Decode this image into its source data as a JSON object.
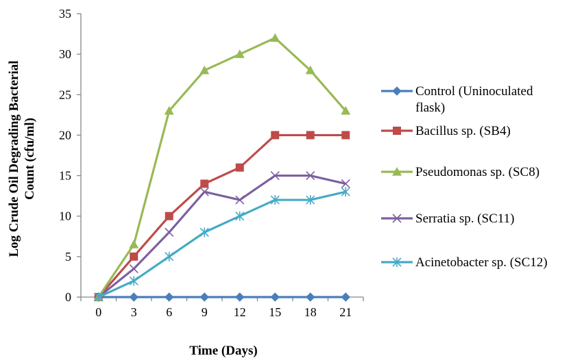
{
  "chart_data": {
    "type": "line",
    "title": "",
    "xlabel": "Time (Days)",
    "ylabel_lines": [
      "Log Crude Oil Degrading Bacterial",
      "Count (cfu/ml)"
    ],
    "x": [
      0,
      3,
      6,
      9,
      12,
      15,
      18,
      21
    ],
    "ylim": [
      0,
      35
    ],
    "yticks": [
      0,
      5,
      10,
      15,
      20,
      25,
      30,
      35
    ],
    "grid": false,
    "legend_position": "right",
    "series": [
      {
        "name_lines": [
          "Control (Uninoculated",
          "flask)"
        ],
        "color": "#4a7ebb",
        "marker": "diamond",
        "values": [
          0,
          0,
          0,
          0,
          0,
          0,
          0,
          0
        ]
      },
      {
        "name_lines": [
          "Bacillus sp. (SB4)"
        ],
        "color": "#be4b48",
        "marker": "square",
        "values": [
          0,
          5,
          10,
          14,
          16,
          20,
          20,
          20
        ]
      },
      {
        "name_lines": [
          "Pseudomonas sp. (SC8)"
        ],
        "color": "#98b954",
        "marker": "triangle",
        "values": [
          0,
          6.5,
          23,
          28,
          30,
          32,
          28,
          23
        ]
      },
      {
        "name_lines": [
          "Serratia sp. (SC11)"
        ],
        "color": "#7d60a0",
        "marker": "x",
        "values": [
          0,
          3.5,
          8,
          13,
          12,
          15,
          15,
          14
        ]
      },
      {
        "name_lines": [
          "Acinetobacter sp. (SC12)"
        ],
        "color": "#46aac5",
        "marker": "star",
        "values": [
          0,
          2,
          5,
          8,
          10,
          12,
          12,
          13
        ]
      }
    ]
  }
}
